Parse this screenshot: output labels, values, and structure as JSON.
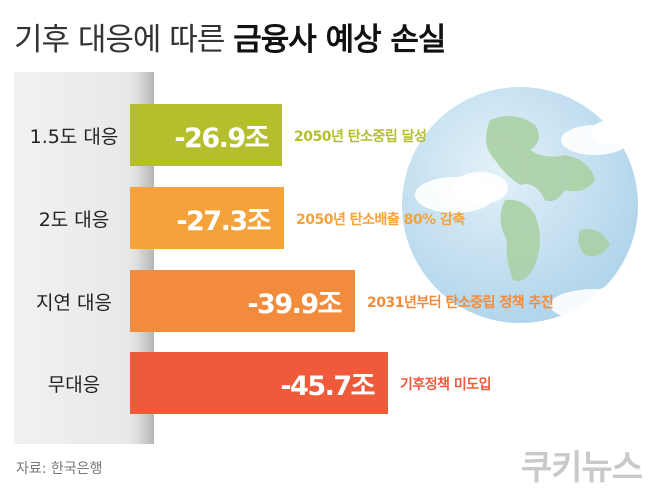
{
  "title_light": "기후 대응에 따른",
  "title_bold": "금융사 예상 손실",
  "source": "자료: 한국은행",
  "logo": "쿠키뉴스",
  "colors": {
    "bar_1": "#b5bf2e",
    "bar_2": "#f5a23a",
    "bar_3": "#f28b3c",
    "bar_4": "#ef5a3a",
    "globe_ocean": "#c2dff0",
    "globe_land": "#a8cfa0"
  },
  "chart_data": {
    "type": "bar",
    "orientation": "horizontal",
    "title": "기후 대응에 따른 금융사 예상 손실",
    "categories": [
      "1.5도 대응",
      "2도 대응",
      "지연 대응",
      "무대응"
    ],
    "values": [
      -26.9,
      -27.3,
      -39.9,
      -45.7
    ],
    "value_labels": [
      "-26.9조",
      "-27.3조",
      "-39.9조",
      "-45.7조"
    ],
    "notes": [
      "2050년 탄소중립 달성",
      "2050년 탄소배출 80% 감축",
      "2031년부터 탄소중립 정책 추진",
      "기후정책 미도입"
    ],
    "grid": false
  }
}
